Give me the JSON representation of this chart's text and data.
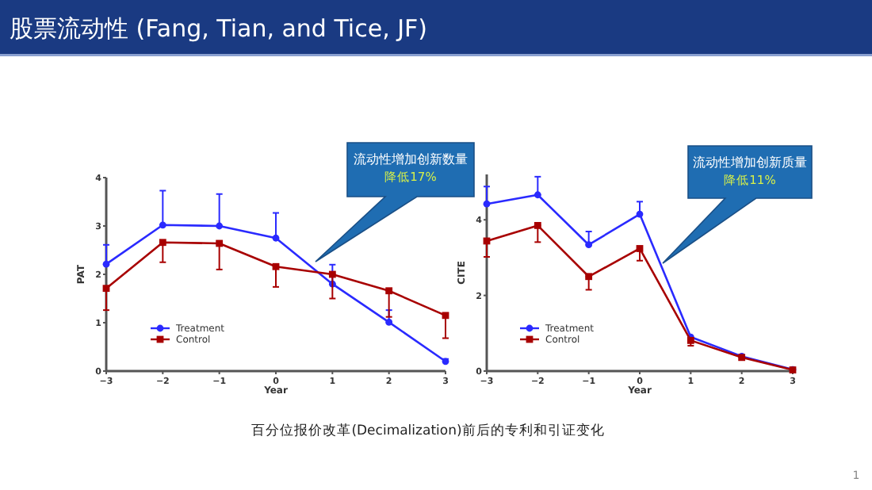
{
  "chart_data": [
    {
      "type": "line",
      "title": "股票流动性 (Fang, Tian, and Tice, JF)",
      "xlabel": "Year",
      "ylabel": "PAT",
      "x": [
        -3,
        -2,
        -1,
        0,
        1,
        2,
        3
      ],
      "xlim": [
        -3,
        3
      ],
      "xticks": [
        -3,
        -2,
        -1,
        0,
        1,
        2,
        3
      ],
      "ylim": [
        0,
        4
      ],
      "yticks": [
        0,
        1,
        2,
        3,
        4
      ],
      "legend": "bottom left",
      "grid": false,
      "series": [
        {
          "name": "Treatment",
          "color": "#2a2aff",
          "marker": "circle",
          "values": [
            2.21,
            3.02,
            3.0,
            2.75,
            1.8,
            1.01,
            0.2
          ],
          "errors": [
            [
              2.21,
              2.61
            ],
            [
              3.02,
              3.73
            ],
            [
              3.0,
              3.66
            ],
            [
              2.75,
              3.27
            ],
            [
              1.8,
              2.2
            ],
            [
              1.01,
              1.26
            ],
            [
              0.2,
              0.25
            ]
          ]
        },
        {
          "name": "Control",
          "color": "#a80000",
          "marker": "square",
          "values": [
            1.71,
            2.66,
            2.64,
            2.16,
            2.0,
            1.66,
            1.15
          ],
          "errors": [
            [
              1.26,
              1.71
            ],
            [
              2.25,
              2.66
            ],
            [
              2.1,
              2.64
            ],
            [
              1.74,
              2.16
            ],
            [
              1.5,
              2.0
            ],
            [
              1.12,
              1.66
            ],
            [
              0.68,
              1.15
            ]
          ]
        }
      ],
      "annotations": [
        "流动性增加创新数量",
        "降低17%",
        "百分位报价改革(Decimalization)前后的专利和引证变化"
      ]
    },
    {
      "type": "line",
      "xlabel": "Year",
      "ylabel": "CITE",
      "x": [
        -3,
        -2,
        -1,
        0,
        1,
        2,
        3
      ],
      "xlim": [
        -3,
        3
      ],
      "xticks": [
        -3,
        -2,
        -1,
        0,
        1,
        2,
        3
      ],
      "ylim": [
        0,
        5.2
      ],
      "yticks": [
        0,
        2,
        4
      ],
      "legend": "bottom left",
      "grid": false,
      "series": [
        {
          "name": "Treatment",
          "color": "#2a2aff",
          "marker": "circle",
          "values": [
            4.42,
            4.66,
            3.34,
            4.15,
            0.9,
            0.39,
            0.04
          ],
          "errors": [
            [
              4.42,
              4.88
            ],
            [
              4.66,
              5.14
            ],
            [
              3.34,
              3.69
            ],
            [
              4.15,
              4.48
            ],
            null,
            null,
            null
          ]
        },
        {
          "name": "Control",
          "color": "#a80000",
          "marker": "square",
          "values": [
            3.44,
            3.85,
            2.5,
            3.24,
            0.81,
            0.36,
            0.03
          ],
          "errors": [
            [
              3.02,
              3.44
            ],
            [
              3.41,
              3.85
            ],
            [
              2.15,
              2.5
            ],
            [
              2.92,
              3.24
            ],
            [
              0.67,
              0.81
            ],
            null,
            null
          ]
        }
      ],
      "annotations": [
        "流动性增加创新质量",
        "降低11%",
        "1"
      ]
    }
  ]
}
